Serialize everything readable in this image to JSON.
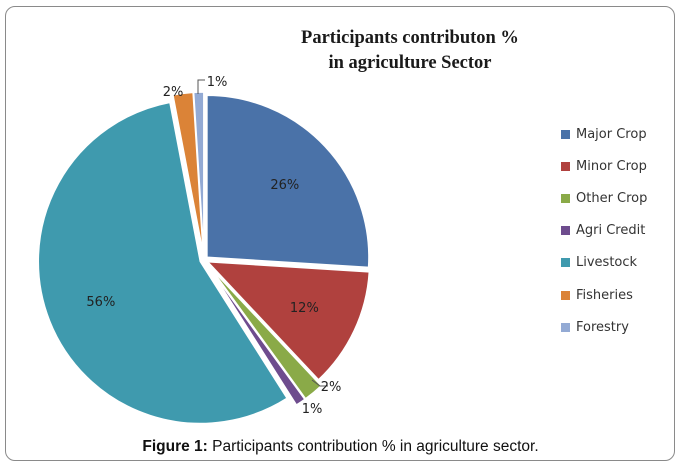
{
  "chart_data": {
    "type": "pie",
    "title_lines": [
      "Participants contributon %",
      "in agriculture Sector"
    ],
    "slices": [
      {
        "name": "Major Crop",
        "value": 26,
        "label": "26%",
        "color": "#4A72A8"
      },
      {
        "name": "Minor Crop",
        "value": 12,
        "label": "12%",
        "color": "#B0413E"
      },
      {
        "name": "Other Crop",
        "value": 2,
        "label": "2%",
        "color": "#8AAA48"
      },
      {
        "name": "Agri Credit",
        "value": 1,
        "label": "1%",
        "color": "#6E4C8E"
      },
      {
        "name": "Livestock",
        "value": 56,
        "label": "56%",
        "color": "#3F9AAE"
      },
      {
        "name": "Fisheries",
        "value": 2,
        "label": "2%",
        "color": "#DB8337"
      },
      {
        "name": "Forestry",
        "value": 1,
        "label": "1%",
        "color": "#93AAD4"
      }
    ],
    "legend_position": "right",
    "start_angle": "12 o'clock",
    "direction": "clockwise",
    "exploded": true
  },
  "caption": {
    "prefix": "Figure 1:",
    "text": " Participants contribution % in agriculture sector."
  }
}
